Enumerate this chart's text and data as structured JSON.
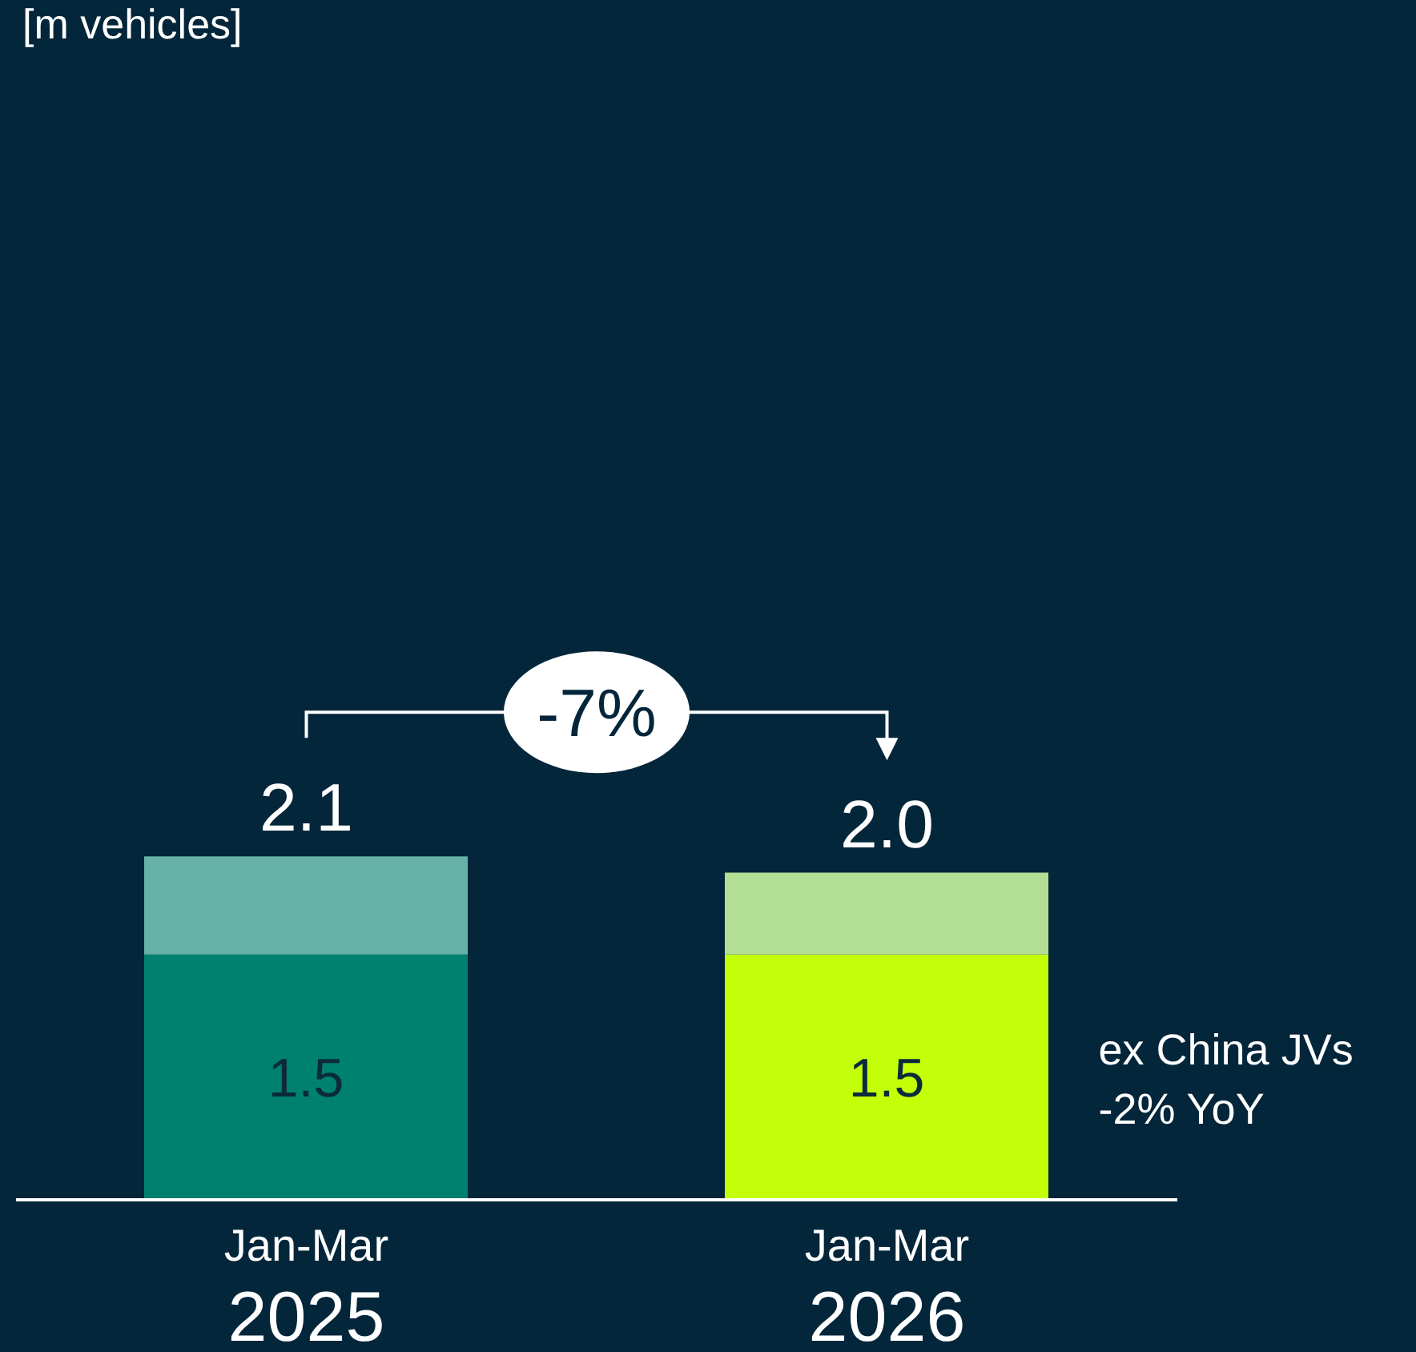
{
  "chart_data": {
    "type": "bar",
    "subtitle": "[m vehicles]",
    "categories": [
      "Jan-Mar 2025",
      "Jan-Mar 2026"
    ],
    "stacked": true,
    "tick_labels": "x",
    "totals": [
      "2.1",
      "2.0"
    ],
    "annotations": [
      "-7%",
      "ex China JVs\n-2% YoY"
    ],
    "series": [
      {
        "colors": [
          "#00806e",
          "#c4ff0a"
        ],
        "values": [
          1.5,
          1.5
        ],
        "value_labels": [
          "1.5",
          "1.5"
        ]
      },
      {
        "colors": [
          "#66b2a8",
          "#b3df94"
        ],
        "values": [
          0.6,
          0.5
        ]
      }
    ]
  }
}
